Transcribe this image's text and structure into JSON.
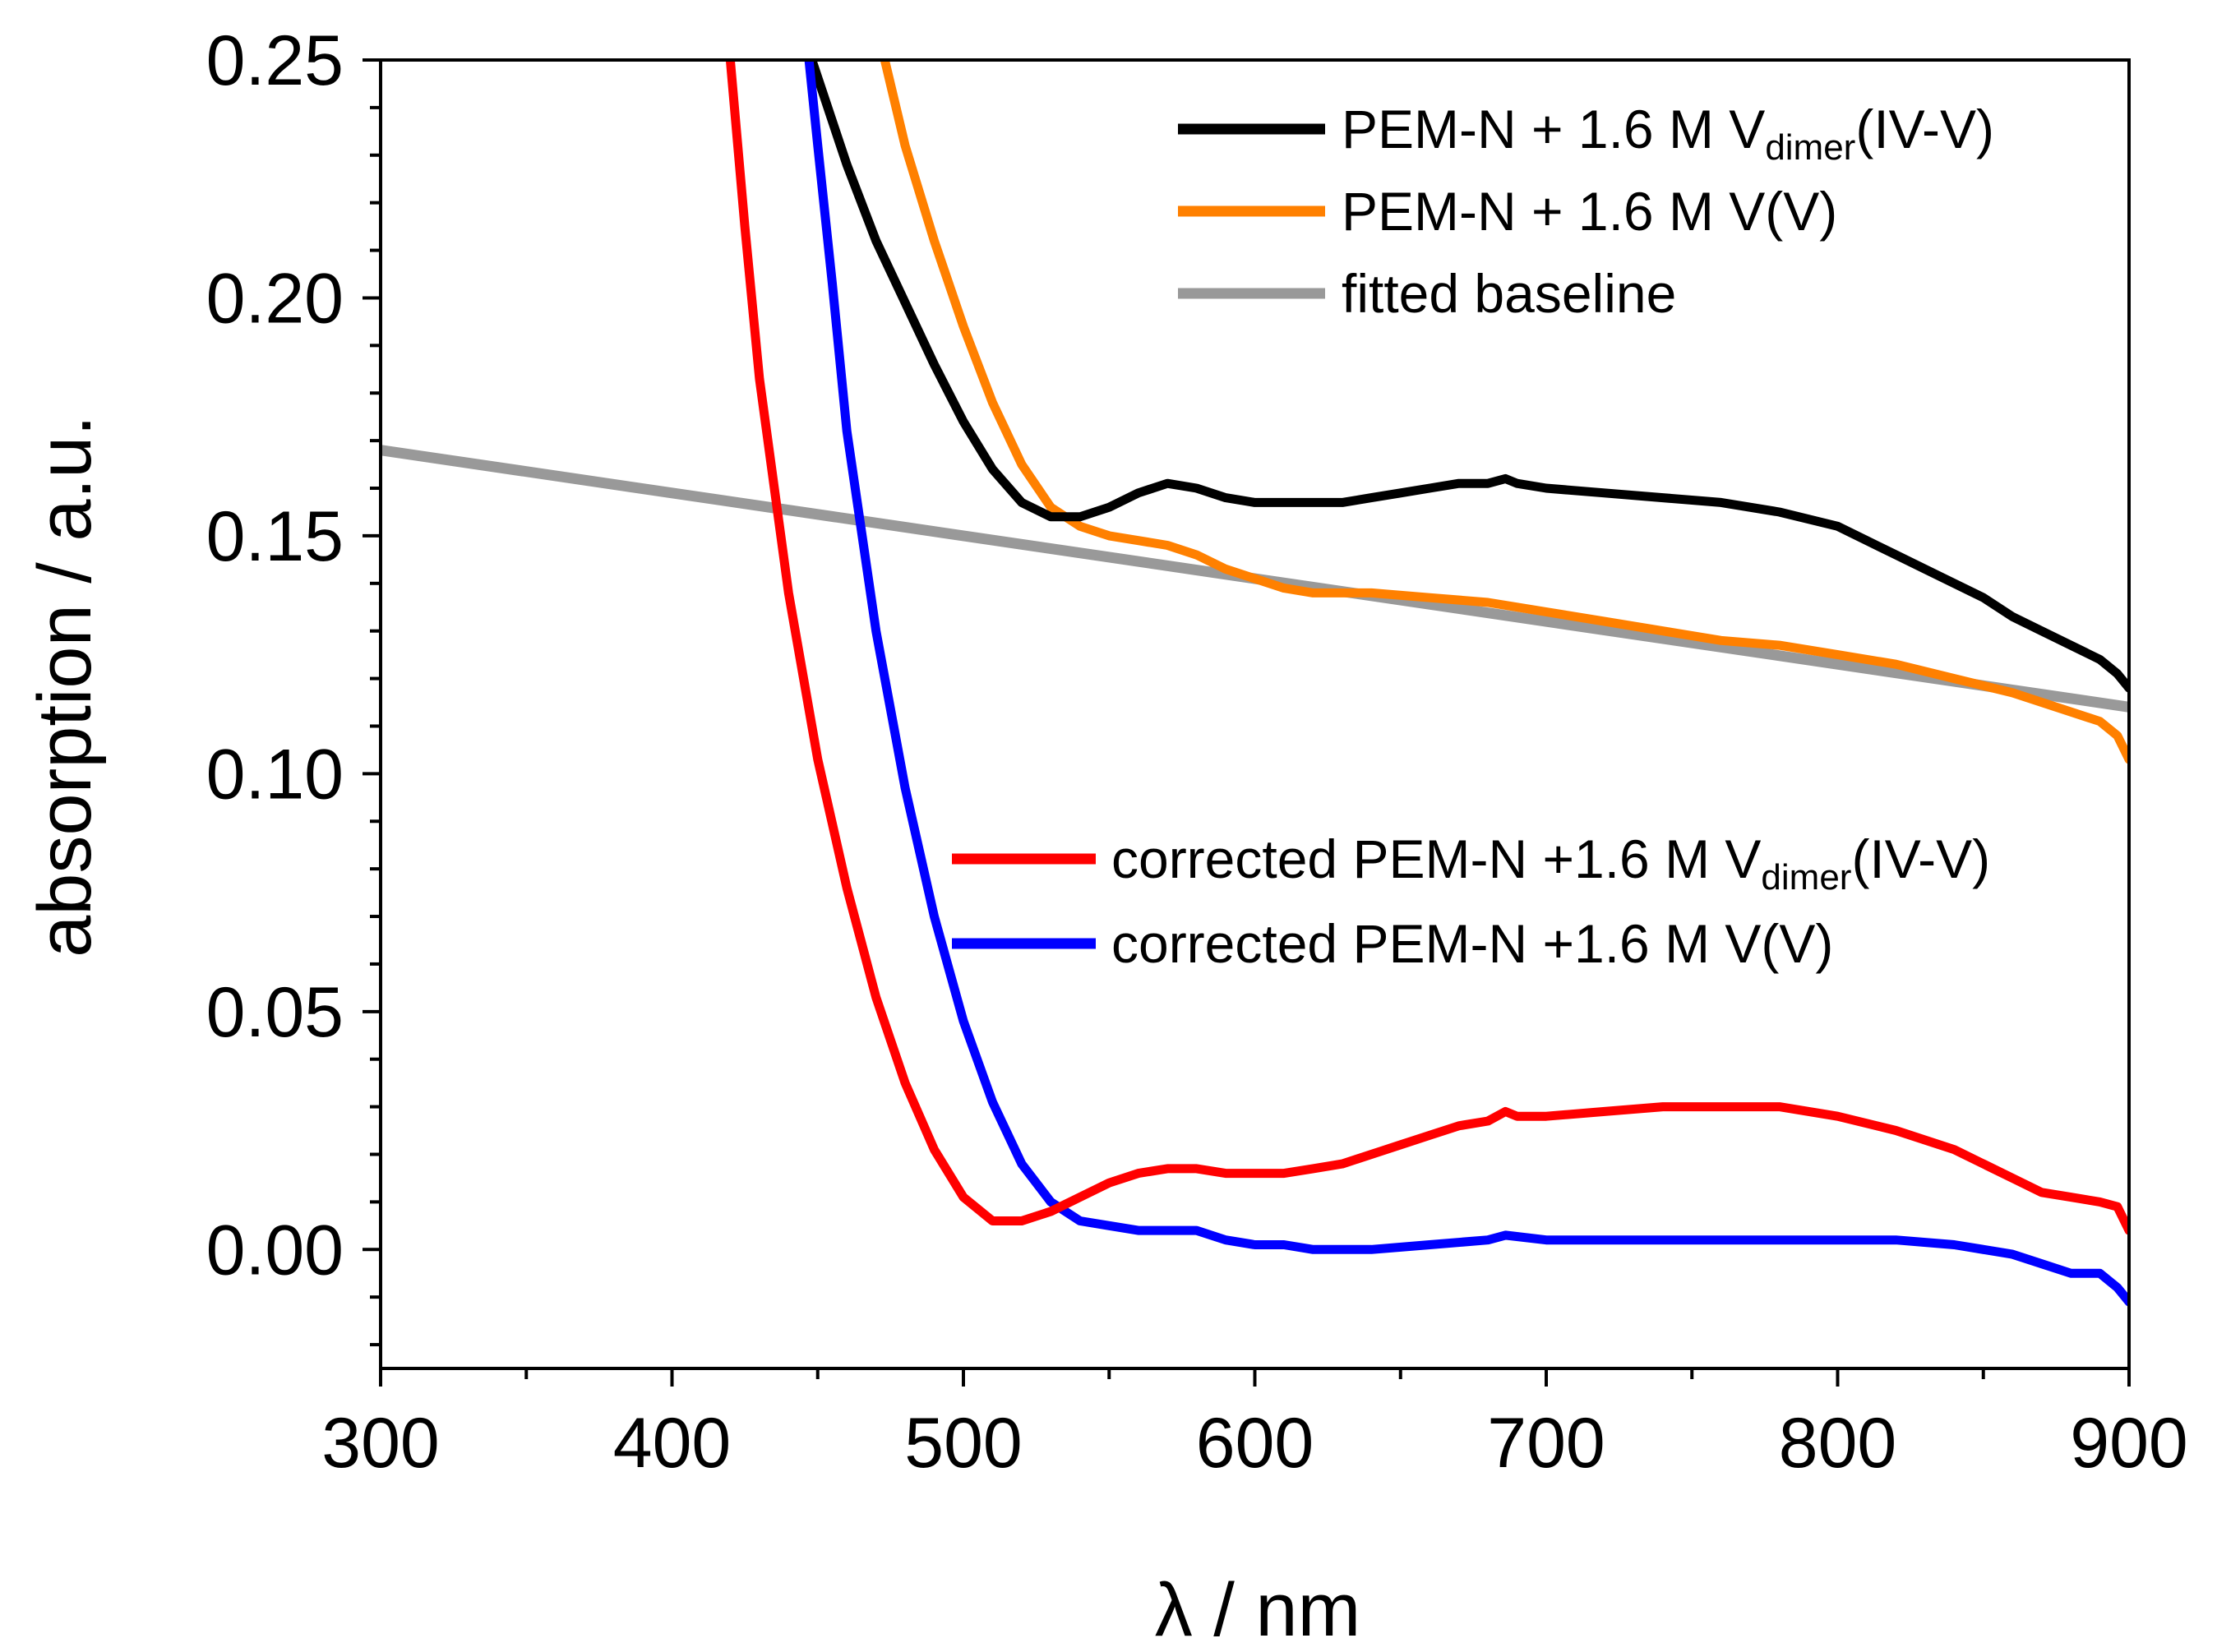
{
  "chart_data": {
    "type": "line",
    "title": "",
    "xlabel": "λ / nm",
    "ylabel": "absorption / a.u.",
    "xlim": [
      300,
      900
    ],
    "ylim": [
      -0.025,
      0.25
    ],
    "x_ticks": [
      300,
      400,
      500,
      600,
      700,
      800,
      900
    ],
    "x_tick_labels": [
      "300",
      "400",
      "500",
      "600",
      "700",
      "800",
      "900"
    ],
    "y_ticks": [
      0.0,
      0.05,
      0.1,
      0.15,
      0.2,
      0.25
    ],
    "y_tick_labels": [
      "0.00",
      "0.05",
      "0.10",
      "0.15",
      "0.20",
      "0.25"
    ],
    "grid": false,
    "legend_upper": {
      "placement": "top-right",
      "entries": [
        {
          "series": 0,
          "text": "PEM-N + 1.6 M V",
          "sub": "dimer",
          "suffix": "(IV-V)"
        },
        {
          "series": 1,
          "text": "PEM-N + 1.6 M V(V)",
          "sub": "",
          "suffix": ""
        },
        {
          "series": 2,
          "text": "fitted baseline",
          "sub": "",
          "suffix": ""
        }
      ]
    },
    "legend_lower": {
      "placement": "center-right",
      "entries": [
        {
          "series": 3,
          "text": "corrected PEM-N +1.6 M V",
          "sub": "dimer",
          "suffix": "(IV-V)"
        },
        {
          "series": 4,
          "text": "corrected PEM-N +1.6 M V(V)",
          "sub": "",
          "suffix": ""
        }
      ]
    },
    "series": [
      {
        "name": "PEM-N + 1.6 M Vdimer(IV-V)",
        "color": "#000000",
        "points": [
          [
            448,
            0.25
          ],
          [
            460,
            0.228
          ],
          [
            470,
            0.212
          ],
          [
            480,
            0.199
          ],
          [
            490,
            0.186
          ],
          [
            500,
            0.174
          ],
          [
            510,
            0.164
          ],
          [
            520,
            0.157
          ],
          [
            530,
            0.154
          ],
          [
            540,
            0.154
          ],
          [
            550,
            0.156
          ],
          [
            560,
            0.159
          ],
          [
            570,
            0.161
          ],
          [
            580,
            0.16
          ],
          [
            590,
            0.158
          ],
          [
            600,
            0.157
          ],
          [
            610,
            0.157
          ],
          [
            620,
            0.157
          ],
          [
            630,
            0.157
          ],
          [
            640,
            0.158
          ],
          [
            650,
            0.159
          ],
          [
            660,
            0.16
          ],
          [
            670,
            0.161
          ],
          [
            680,
            0.161
          ],
          [
            686,
            0.162
          ],
          [
            690,
            0.161
          ],
          [
            700,
            0.16
          ],
          [
            720,
            0.159
          ],
          [
            740,
            0.158
          ],
          [
            760,
            0.157
          ],
          [
            780,
            0.155
          ],
          [
            800,
            0.152
          ],
          [
            810,
            0.149
          ],
          [
            820,
            0.146
          ],
          [
            830,
            0.143
          ],
          [
            840,
            0.14
          ],
          [
            850,
            0.137
          ],
          [
            860,
            0.133
          ],
          [
            870,
            0.13
          ],
          [
            880,
            0.127
          ],
          [
            890,
            0.124
          ],
          [
            896,
            0.121
          ],
          [
            900,
            0.118
          ]
        ]
      },
      {
        "name": "PEM-N + 1.6 M V(V)",
        "color": "#ff8000",
        "points": [
          [
            473,
            0.25
          ],
          [
            480,
            0.232
          ],
          [
            490,
            0.212
          ],
          [
            500,
            0.194
          ],
          [
            510,
            0.178
          ],
          [
            520,
            0.165
          ],
          [
            530,
            0.156
          ],
          [
            540,
            0.152
          ],
          [
            550,
            0.15
          ],
          [
            560,
            0.149
          ],
          [
            570,
            0.148
          ],
          [
            580,
            0.146
          ],
          [
            590,
            0.143
          ],
          [
            600,
            0.141
          ],
          [
            610,
            0.139
          ],
          [
            620,
            0.138
          ],
          [
            640,
            0.138
          ],
          [
            660,
            0.137
          ],
          [
            680,
            0.136
          ],
          [
            700,
            0.134
          ],
          [
            720,
            0.132
          ],
          [
            740,
            0.13
          ],
          [
            760,
            0.128
          ],
          [
            780,
            0.127
          ],
          [
            800,
            0.125
          ],
          [
            820,
            0.123
          ],
          [
            840,
            0.12
          ],
          [
            860,
            0.117
          ],
          [
            880,
            0.113
          ],
          [
            890,
            0.111
          ],
          [
            896,
            0.108
          ],
          [
            900,
            0.103
          ]
        ]
      },
      {
        "name": "fitted baseline",
        "color": "#999999",
        "points": [
          [
            300,
            0.168
          ],
          [
            900,
            0.114
          ]
        ]
      },
      {
        "name": "corrected PEM-N +1.6 M Vdimer(IV-V)",
        "color": "#ff0000",
        "points": [
          [
            420,
            0.25
          ],
          [
            425,
            0.215
          ],
          [
            430,
            0.183
          ],
          [
            440,
            0.138
          ],
          [
            450,
            0.103
          ],
          [
            460,
            0.076
          ],
          [
            470,
            0.053
          ],
          [
            480,
            0.035
          ],
          [
            490,
            0.021
          ],
          [
            500,
            0.011
          ],
          [
            510,
            0.006
          ],
          [
            520,
            0.006
          ],
          [
            530,
            0.008
          ],
          [
            540,
            0.011
          ],
          [
            550,
            0.014
          ],
          [
            560,
            0.016
          ],
          [
            570,
            0.017
          ],
          [
            580,
            0.017
          ],
          [
            590,
            0.016
          ],
          [
            600,
            0.016
          ],
          [
            610,
            0.016
          ],
          [
            620,
            0.017
          ],
          [
            630,
            0.018
          ],
          [
            640,
            0.02
          ],
          [
            650,
            0.022
          ],
          [
            660,
            0.024
          ],
          [
            670,
            0.026
          ],
          [
            680,
            0.027
          ],
          [
            686,
            0.029
          ],
          [
            690,
            0.028
          ],
          [
            700,
            0.028
          ],
          [
            720,
            0.029
          ],
          [
            740,
            0.03
          ],
          [
            760,
            0.03
          ],
          [
            780,
            0.03
          ],
          [
            800,
            0.028
          ],
          [
            820,
            0.025
          ],
          [
            840,
            0.021
          ],
          [
            850,
            0.018
          ],
          [
            860,
            0.015
          ],
          [
            870,
            0.012
          ],
          [
            880,
            0.011
          ],
          [
            890,
            0.01
          ],
          [
            896,
            0.009
          ],
          [
            900,
            0.004
          ]
        ]
      },
      {
        "name": "corrected PEM-N +1.6 M V(V)",
        "color": "#0000ff",
        "points": [
          [
            447,
            0.25
          ],
          [
            450,
            0.232
          ],
          [
            455,
            0.203
          ],
          [
            460,
            0.172
          ],
          [
            470,
            0.13
          ],
          [
            480,
            0.097
          ],
          [
            490,
            0.07
          ],
          [
            500,
            0.048
          ],
          [
            510,
            0.031
          ],
          [
            520,
            0.018
          ],
          [
            530,
            0.01
          ],
          [
            540,
            0.006
          ],
          [
            550,
            0.005
          ],
          [
            560,
            0.004
          ],
          [
            570,
            0.004
          ],
          [
            580,
            0.004
          ],
          [
            590,
            0.002
          ],
          [
            600,
            0.001
          ],
          [
            610,
            0.001
          ],
          [
            620,
            0.0
          ],
          [
            630,
            0.0
          ],
          [
            640,
            0.0
          ],
          [
            660,
            0.001
          ],
          [
            680,
            0.002
          ],
          [
            686,
            0.003
          ],
          [
            700,
            0.002
          ],
          [
            720,
            0.002
          ],
          [
            740,
            0.002
          ],
          [
            760,
            0.002
          ],
          [
            780,
            0.002
          ],
          [
            800,
            0.002
          ],
          [
            820,
            0.002
          ],
          [
            840,
            0.001
          ],
          [
            860,
            -0.001
          ],
          [
            870,
            -0.003
          ],
          [
            880,
            -0.005
          ],
          [
            890,
            -0.005
          ],
          [
            896,
            -0.008
          ],
          [
            900,
            -0.011
          ]
        ]
      }
    ]
  }
}
